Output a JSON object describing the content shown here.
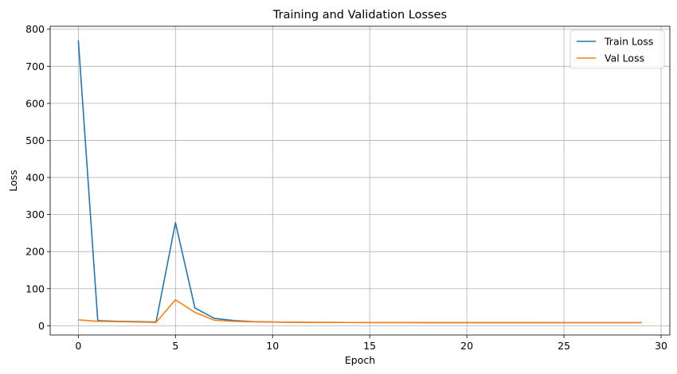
{
  "chart_data": {
    "type": "line",
    "title": "Training and Validation Losses",
    "xlabel": "Epoch",
    "ylabel": "Loss",
    "xlim": [
      -1.45,
      30.45
    ],
    "ylim": [
      -25,
      808
    ],
    "xticks": [
      0,
      5,
      10,
      15,
      20,
      25,
      30
    ],
    "yticks": [
      0,
      100,
      200,
      300,
      400,
      500,
      600,
      700,
      800
    ],
    "grid": true,
    "legend_position": "top-right",
    "x": [
      0,
      1,
      2,
      3,
      4,
      5,
      6,
      7,
      8,
      9,
      10,
      11,
      12,
      13,
      14,
      15,
      16,
      17,
      18,
      19,
      20,
      21,
      22,
      23,
      24,
      25,
      26,
      27,
      28,
      29
    ],
    "series": [
      {
        "name": "Train Loss",
        "color": "#1f77b4",
        "values": [
          770,
          14,
          12,
          11,
          10,
          278,
          48,
          20,
          14,
          11,
          10,
          9.5,
          9,
          9,
          8.8,
          8.7,
          8.6,
          8.6,
          8.5,
          8.5,
          8.5,
          8.4,
          8.4,
          8.4,
          8.4,
          8.3,
          8.3,
          8.3,
          8.3,
          8.3
        ]
      },
      {
        "name": "Val Loss",
        "color": "#ff7f0e",
        "values": [
          16,
          12,
          11,
          10,
          9,
          70,
          36,
          15,
          12,
          10.5,
          10,
          9.5,
          9,
          9,
          8.8,
          8.7,
          8.6,
          8.6,
          8.5,
          8.5,
          8.5,
          8.4,
          8.4,
          8.4,
          8.4,
          8.3,
          8.3,
          8.3,
          8.3,
          8.3
        ]
      }
    ]
  }
}
